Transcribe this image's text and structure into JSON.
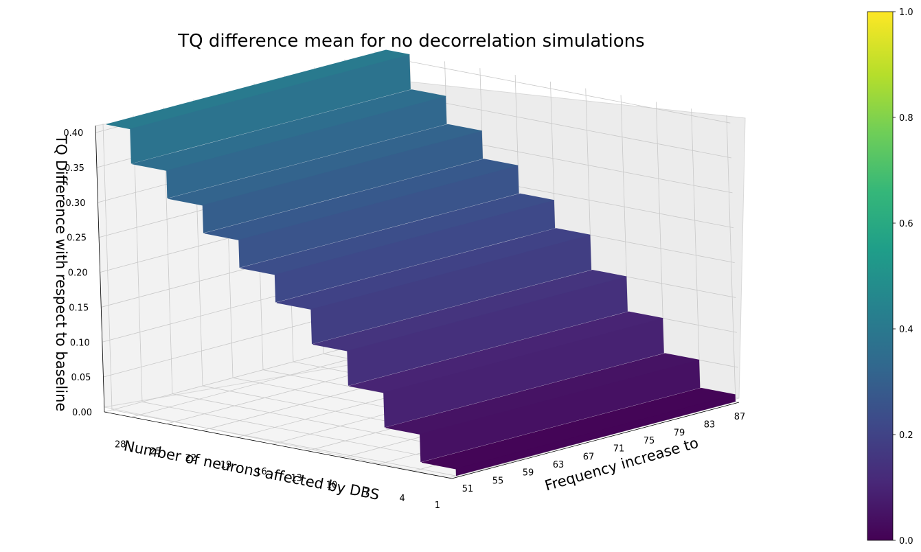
{
  "chart_data": {
    "type": "surface3d",
    "title": "TQ difference mean for no decorrelation simulations",
    "x_axis": {
      "label": "Number of neurons affected by DBS",
      "ticks": [
        28,
        25,
        22,
        19,
        16,
        13,
        10,
        7,
        4,
        1
      ],
      "range": [
        1,
        30
      ]
    },
    "y_axis": {
      "label": "Frequency increase to",
      "ticks": [
        51,
        55,
        59,
        63,
        67,
        71,
        75,
        79,
        83,
        87
      ],
      "range": [
        50,
        88
      ]
    },
    "z_axis": {
      "label": "TQ Difference with respect to baseline",
      "ticks": [
        "0.00",
        "0.05",
        "0.10",
        "0.15",
        "0.20",
        "0.25",
        "0.30",
        "0.35",
        "0.40"
      ],
      "range": [
        0,
        0.41
      ]
    },
    "surface": {
      "description_levels_by_neurons": [
        {
          "neurons": 1,
          "tq": 0.01
        },
        {
          "neurons": 4,
          "tq": 0.05
        },
        {
          "neurons": 7,
          "tq": 0.1
        },
        {
          "neurons": 10,
          "tq": 0.15
        },
        {
          "neurons": 13,
          "tq": 0.2
        },
        {
          "neurons": 16,
          "tq": 0.24
        },
        {
          "neurons": 19,
          "tq": 0.28
        },
        {
          "neurons": 22,
          "tq": 0.32
        },
        {
          "neurons": 25,
          "tq": 0.36
        },
        {
          "neurons": 28,
          "tq": 0.41
        }
      ]
    },
    "colorbar": {
      "ticks": [
        "0.0",
        "0.2",
        "0.4",
        "0.6",
        "0.8",
        "1.0"
      ],
      "range": [
        0,
        1
      ],
      "colormap": "viridis"
    },
    "grid": true
  },
  "colors": {
    "pane": "#f2f2f2",
    "grid": "#c8c8c8",
    "viridis": [
      "#440154",
      "#482878",
      "#3e4989",
      "#31688e",
      "#26828e",
      "#1f9e89",
      "#35b779",
      "#6ece58",
      "#b5de2b",
      "#fde725"
    ]
  }
}
